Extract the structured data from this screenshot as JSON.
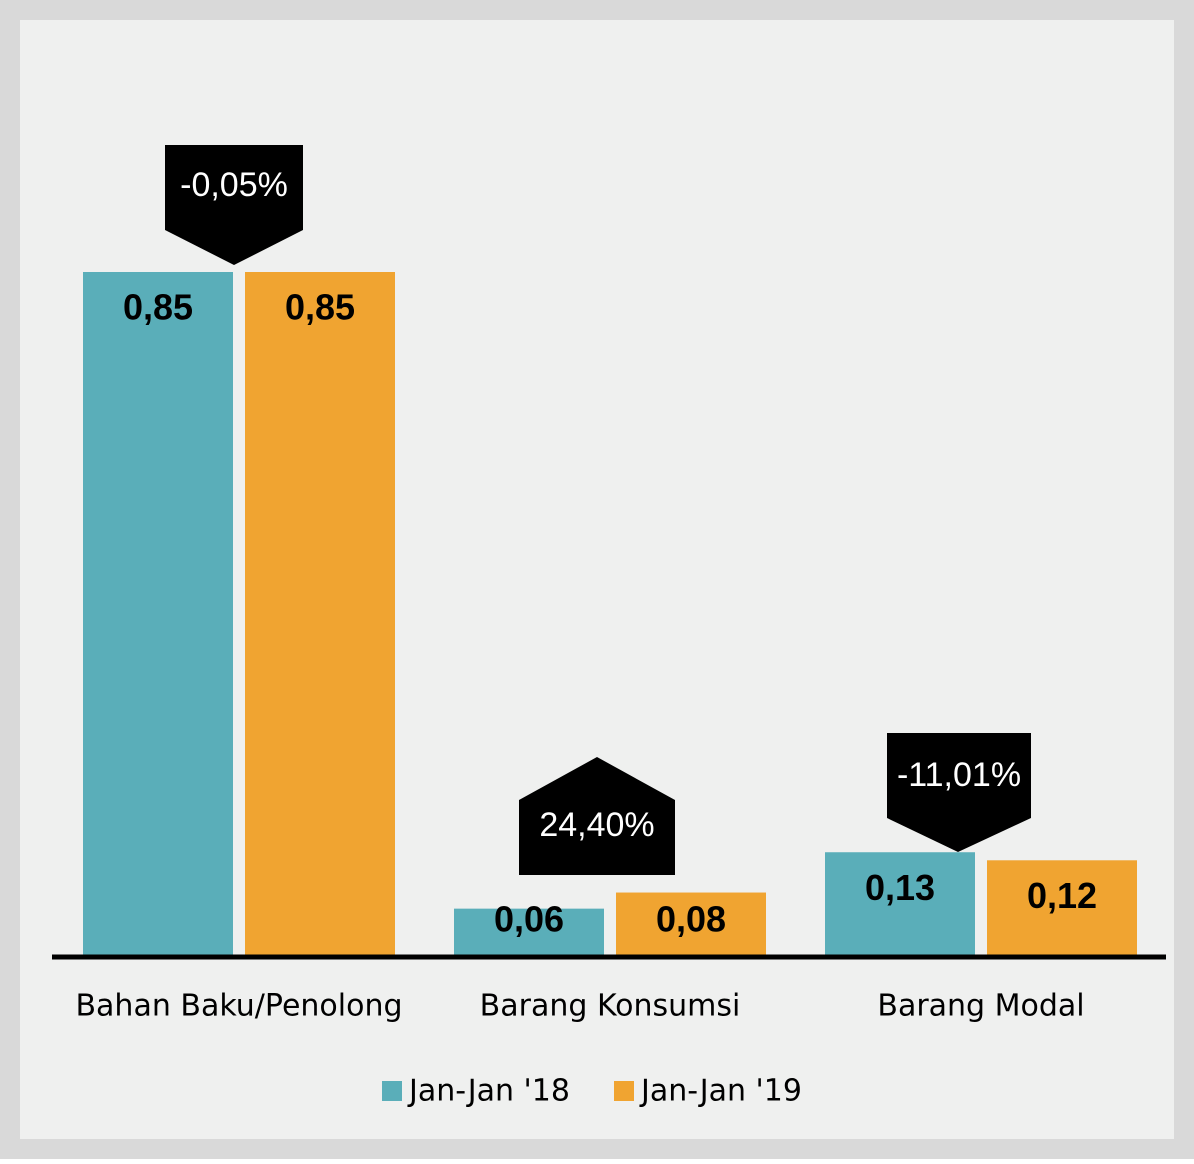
{
  "chart_data": {
    "type": "bar",
    "categories": [
      "Bahan Baku/Penolong",
      "Barang Konsumsi",
      "Barang Modal"
    ],
    "series": [
      {
        "name": "Jan-Jan '18",
        "color": "#5aaeb9",
        "values": [
          0.85,
          0.06,
          0.13
        ],
        "value_labels": [
          "0,85",
          "0,06",
          "0,13"
        ]
      },
      {
        "name": "Jan-Jan '19",
        "color": "#f0a431",
        "values": [
          0.85,
          0.08,
          0.12
        ],
        "value_labels": [
          "0,85",
          "0,08",
          "0,12"
        ]
      }
    ],
    "annotations": [
      "-0,05%",
      "24,40%",
      "-11,01%"
    ]
  }
}
